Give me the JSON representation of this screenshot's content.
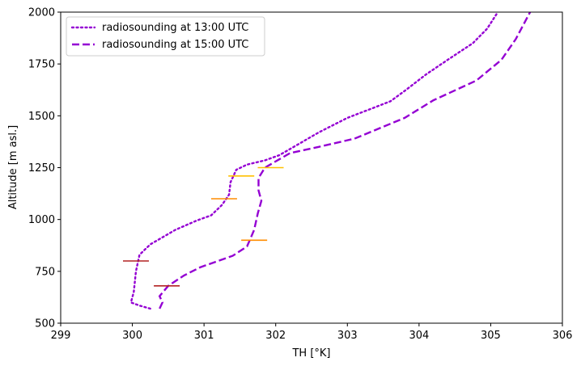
{
  "chart_data": {
    "type": "line",
    "title": "",
    "xlabel": "TH [°K]",
    "ylabel": "Altitude [m asl.]",
    "xlim": [
      299,
      306
    ],
    "ylim": [
      500,
      2000
    ],
    "x_ticks": [
      "299",
      "300",
      "301",
      "302",
      "303",
      "304",
      "305",
      "306"
    ],
    "y_ticks": [
      "500",
      "750",
      "1000",
      "1250",
      "1500",
      "1750",
      "2000"
    ],
    "grid": false,
    "legend_position": "top-left",
    "series": [
      {
        "name": "radiosounding at 13:00 UTC",
        "color": "#9400D3",
        "style": "dotted",
        "points": [
          [
            300.25,
            570
          ],
          [
            300.1,
            585
          ],
          [
            299.98,
            600
          ],
          [
            300.02,
            650
          ],
          [
            300.05,
            750
          ],
          [
            300.1,
            830
          ],
          [
            300.25,
            880
          ],
          [
            300.4,
            910
          ],
          [
            300.6,
            950
          ],
          [
            300.9,
            995
          ],
          [
            301.1,
            1020
          ],
          [
            301.25,
            1070
          ],
          [
            301.35,
            1120
          ],
          [
            301.37,
            1180
          ],
          [
            301.45,
            1240
          ],
          [
            301.6,
            1265
          ],
          [
            301.85,
            1285
          ],
          [
            302.05,
            1310
          ],
          [
            302.3,
            1360
          ],
          [
            302.6,
            1420
          ],
          [
            303.0,
            1490
          ],
          [
            303.6,
            1570
          ],
          [
            303.8,
            1620
          ],
          [
            304.1,
            1700
          ],
          [
            304.4,
            1770
          ],
          [
            304.75,
            1850
          ],
          [
            304.95,
            1920
          ],
          [
            305.08,
            1990
          ]
        ]
      },
      {
        "name": "radiosounding at 15:00 UTC",
        "color": "#9400D3",
        "style": "dashed",
        "points": [
          [
            300.38,
            570
          ],
          [
            300.42,
            600
          ],
          [
            300.38,
            630
          ],
          [
            300.5,
            680
          ],
          [
            300.72,
            730
          ],
          [
            300.95,
            770
          ],
          [
            301.4,
            825
          ],
          [
            301.6,
            870
          ],
          [
            301.7,
            950
          ],
          [
            301.75,
            1030
          ],
          [
            301.8,
            1090
          ],
          [
            301.76,
            1140
          ],
          [
            301.76,
            1200
          ],
          [
            301.85,
            1250
          ],
          [
            302.05,
            1290
          ],
          [
            302.2,
            1320
          ],
          [
            302.6,
            1350
          ],
          [
            303.1,
            1390
          ],
          [
            303.8,
            1490
          ],
          [
            304.2,
            1575
          ],
          [
            304.8,
            1670
          ],
          [
            305.15,
            1770
          ],
          [
            305.35,
            1870
          ],
          [
            305.55,
            2000
          ]
        ]
      }
    ],
    "markers": [
      {
        "x": 300.05,
        "y": 800,
        "color": "#B22222"
      },
      {
        "x": 300.48,
        "y": 680,
        "color": "#B22222"
      },
      {
        "x": 301.28,
        "y": 1100,
        "color": "#FF8C00"
      },
      {
        "x": 301.52,
        "y": 1210,
        "color": "#FFC000"
      },
      {
        "x": 301.7,
        "y": 900,
        "color": "#FF8C00"
      },
      {
        "x": 301.93,
        "y": 1250,
        "color": "#FFC000"
      }
    ]
  }
}
